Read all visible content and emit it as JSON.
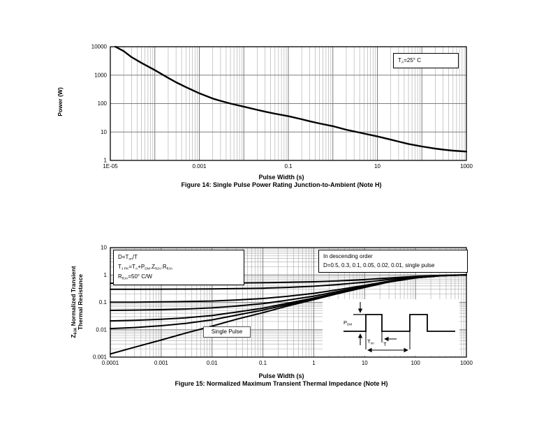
{
  "figure14": {
    "ylabel": "Power (W)",
    "xlabel": "Pulse Width (s)",
    "caption": "Figure 14: Single Pulse Power Rating Junction-to-Ambient (Note H)",
    "annotation": {
      "p1": "T",
      "s1": "A",
      "p2": "=25° C"
    }
  },
  "figure15": {
    "ylabel_line1": {
      "p1": "Z",
      "s1": "θJA",
      "p2": " Normalized Transient"
    },
    "ylabel_line2": "Thermal Resistance",
    "xlabel": "Pulse Width (s)",
    "caption": "Figure 15: Normalized Maximum Transient Thermal Impedance (Note H)",
    "formula_box": {
      "line1": {
        "p1": "D=T",
        "s1": "on",
        "p2": "/T"
      },
      "line2": {
        "p1": "T",
        "s1": "J PK",
        "p2": "=T",
        "s2": "A",
        "p3": "+P",
        "s3": "DM",
        "p4": ".Z",
        "s4": "θJA",
        "p5": ".R",
        "s5": "θJA"
      },
      "line3": {
        "p1": "R",
        "s1": "θJA",
        "p2": "=50° C/W"
      }
    },
    "legend_box": {
      "line1": "In descending order",
      "line2": "D=0.5, 0.3, 0.1, 0.05, 0.02, 0.01, single pulse"
    },
    "single_pulse_label": "Single Pulse",
    "inset": {
      "p_dm": {
        "p1": "P",
        "s1": "DM"
      },
      "t_on": {
        "p1": "T",
        "s1": "on"
      },
      "t": "T"
    }
  },
  "chart_data": [
    {
      "type": "line",
      "title": "Figure 14: Single Pulse Power Rating Junction-to-Ambient (Note H)",
      "xlabel": "Pulse Width (s)",
      "ylabel": "Power (W)",
      "xscale": "log",
      "yscale": "log",
      "xlim": [
        1e-05,
        1000
      ],
      "ylim": [
        1,
        10000
      ],
      "grid": "log major+minor vertical, major horizontal",
      "annotations": [
        "TA=25° C"
      ],
      "xticks": [
        {
          "v": 1e-05,
          "label": "1E-05"
        },
        {
          "v": 0.001,
          "label": "0.001"
        },
        {
          "v": 0.1,
          "label": "0.1"
        },
        {
          "v": 10,
          "label": "10"
        },
        {
          "v": 1000,
          "label": "1000"
        }
      ],
      "yticks": [
        {
          "v": 1,
          "label": "1"
        },
        {
          "v": 10,
          "label": "10"
        },
        {
          "v": 100,
          "label": "100"
        },
        {
          "v": 1000,
          "label": "1000"
        },
        {
          "v": 10000,
          "label": "10000"
        }
      ],
      "x": [
        1.3e-05,
        2e-05,
        3e-05,
        5e-05,
        0.0001,
        0.0002,
        0.0003,
        0.0005,
        0.001,
        0.002,
        0.003,
        0.005,
        0.01,
        0.02,
        0.03,
        0.05,
        0.1,
        0.2,
        0.3,
        0.5,
        1,
        2,
        3,
        5,
        10,
        20,
        30,
        50,
        100,
        200,
        300,
        500,
        1000
      ],
      "series": [
        {
          "name": "single pulse power",
          "y": [
            10000,
            7000,
            4300,
            2700,
            1500,
            800,
            560,
            380,
            230,
            150,
            125,
            100,
            78,
            60,
            52,
            44,
            36,
            28,
            24,
            20,
            16,
            12,
            10.5,
            8.8,
            7,
            5.4,
            4.6,
            3.8,
            3.1,
            2.6,
            2.4,
            2.2,
            2.05
          ]
        }
      ]
    },
    {
      "type": "line",
      "title": "Figure 15: Normalized Maximum Transient Thermal Impedance (Note H)",
      "xlabel": "Pulse Width (s)",
      "ylabel": "ZθJA Normalized Transient Thermal Resistance",
      "xscale": "log",
      "yscale": "log",
      "xlim": [
        0.0001,
        1000
      ],
      "ylim": [
        0.001,
        10
      ],
      "grid": "log major+minor both directions",
      "annotations": [
        "D=Ton/T",
        "TJ PK=TA+PDM.ZθJA.RθJA",
        "RθJA=50° C/W",
        "In descending order",
        "D=0.5, 0.3, 0.1, 0.05, 0.02, 0.01, single pulse",
        "Single Pulse"
      ],
      "xticks": [
        {
          "v": 0.0001,
          "label": "0.0001"
        },
        {
          "v": 0.001,
          "label": "0.001"
        },
        {
          "v": 0.01,
          "label": "0.01"
        },
        {
          "v": 0.1,
          "label": "0.1"
        },
        {
          "v": 1,
          "label": "1"
        },
        {
          "v": 10,
          "label": "10"
        },
        {
          "v": 100,
          "label": "100"
        },
        {
          "v": 1000,
          "label": "1000"
        }
      ],
      "yticks": [
        {
          "v": 0.001,
          "label": "0.001"
        },
        {
          "v": 0.01,
          "label": "0.01"
        },
        {
          "v": 0.1,
          "label": "0.1"
        },
        {
          "v": 1,
          "label": "1"
        },
        {
          "v": 10,
          "label": "10"
        }
      ],
      "x": [
        0.0001,
        0.0003,
        0.001,
        0.003,
        0.01,
        0.03,
        0.1,
        0.3,
        1,
        3,
        10,
        30,
        100,
        300,
        600,
        1000
      ],
      "series": [
        {
          "name": "D=0.5",
          "y": [
            0.5,
            0.501,
            0.502,
            0.504,
            0.507,
            0.512,
            0.521,
            0.537,
            0.563,
            0.605,
            0.675,
            0.775,
            0.89,
            0.965,
            0.99,
            1.0
          ]
        },
        {
          "name": "D=0.3",
          "y": [
            0.301,
            0.302,
            0.303,
            0.305,
            0.309,
            0.317,
            0.329,
            0.351,
            0.388,
            0.447,
            0.545,
            0.685,
            0.846,
            0.951,
            0.986,
            1.0
          ]
        },
        {
          "name": "D=0.1",
          "y": [
            0.101,
            0.102,
            0.104,
            0.107,
            0.112,
            0.122,
            0.138,
            0.166,
            0.213,
            0.289,
            0.415,
            0.595,
            0.802,
            0.937,
            0.982,
            1.0
          ]
        },
        {
          "name": "D=0.05",
          "y": [
            0.051,
            0.052,
            0.054,
            0.057,
            0.063,
            0.073,
            0.09,
            0.119,
            0.169,
            0.25,
            0.383,
            0.573,
            0.791,
            0.934,
            0.981,
            1.0
          ]
        },
        {
          "name": "D=0.02",
          "y": [
            0.021,
            0.022,
            0.024,
            0.027,
            0.033,
            0.044,
            0.061,
            0.092,
            0.143,
            0.226,
            0.363,
            0.559,
            0.784,
            0.931,
            0.98,
            1.0
          ]
        },
        {
          "name": "D=0.01",
          "y": [
            0.011,
            0.012,
            0.014,
            0.017,
            0.023,
            0.034,
            0.052,
            0.082,
            0.134,
            0.218,
            0.357,
            0.555,
            0.782,
            0.93,
            0.98,
            1.0
          ]
        },
        {
          "name": "single pulse",
          "y": [
            0.0013,
            0.0023,
            0.0042,
            0.0075,
            0.0135,
            0.024,
            0.042,
            0.073,
            0.125,
            0.21,
            0.35,
            0.55,
            0.78,
            0.93,
            0.98,
            1.0
          ]
        }
      ]
    }
  ]
}
